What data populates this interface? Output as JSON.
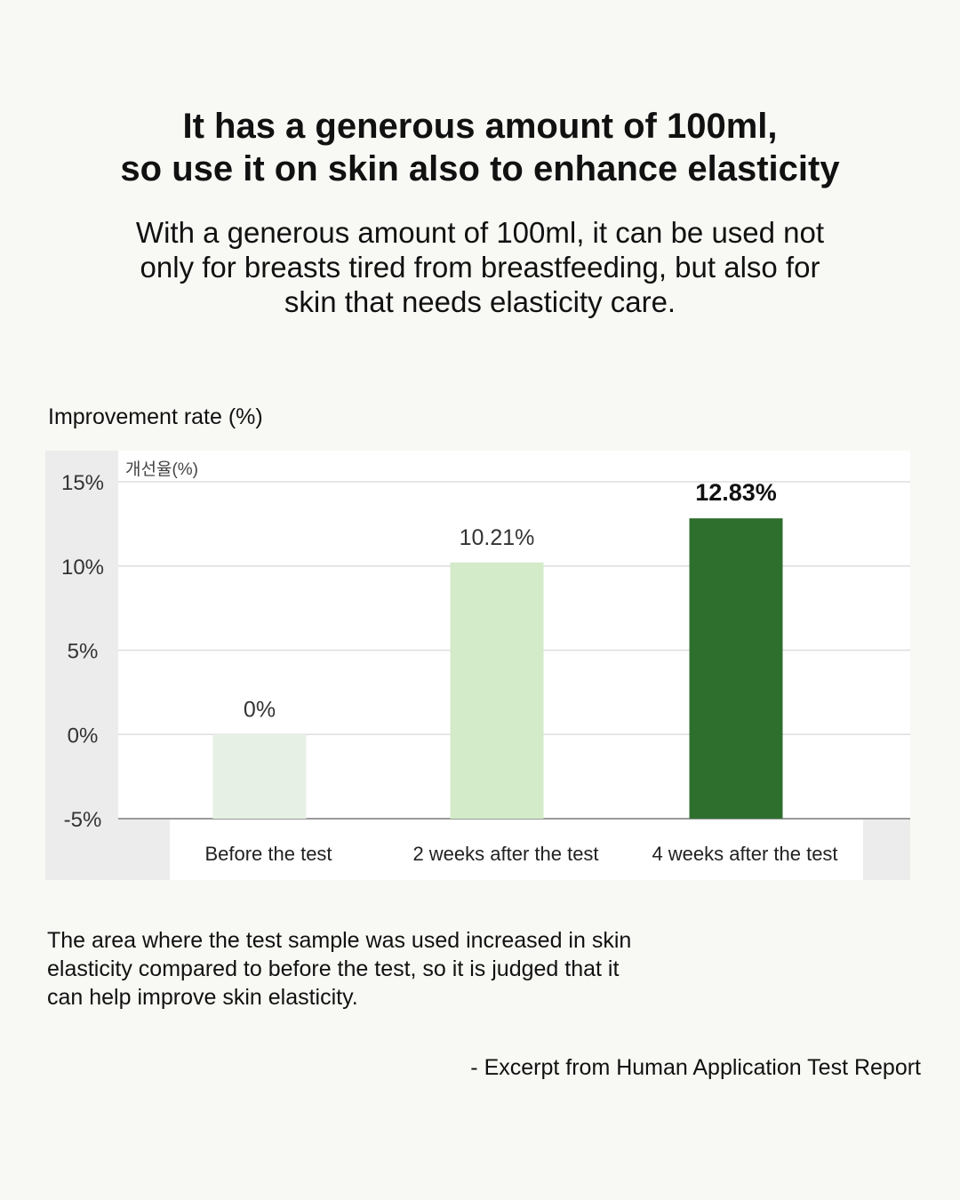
{
  "header": {
    "title_line1": "It has a generous amount of 100ml,",
    "title_line2": "so use it on skin also to enhance elasticity",
    "description_line1": "With a generous amount of 100ml, it can be used not",
    "description_line2": "only for breasts tired from breastfeeding, but also for",
    "description_line3": "skin that needs elasticity care."
  },
  "chart_label": "Improvement rate (%)",
  "chart_data": {
    "type": "bar",
    "ylabel": "개선율(%)",
    "categories": [
      "Before the test",
      "2 weeks after the test",
      "4 weeks after the test"
    ],
    "values": [
      0,
      10.21,
      12.83
    ],
    "value_labels": [
      "0%",
      "10.21%",
      "12.83%"
    ],
    "ylim": [
      -5,
      15
    ],
    "yticks": [
      15,
      10,
      5,
      0,
      -5
    ],
    "ytick_labels": [
      "15%",
      "10%",
      "5%",
      "0%",
      "-5%"
    ],
    "bar_colors": [
      "#e6f0e4",
      "#d3ebc9",
      "#2f6f2e"
    ],
    "grid": true,
    "highlight_index": 2
  },
  "footnote": {
    "line1": "The area where the test sample was used increased in skin",
    "line2": "elasticity compared to before the test, so it is judged that it",
    "line3": "can help improve skin elasticity."
  },
  "source": "- Excerpt from Human Application Test Report"
}
